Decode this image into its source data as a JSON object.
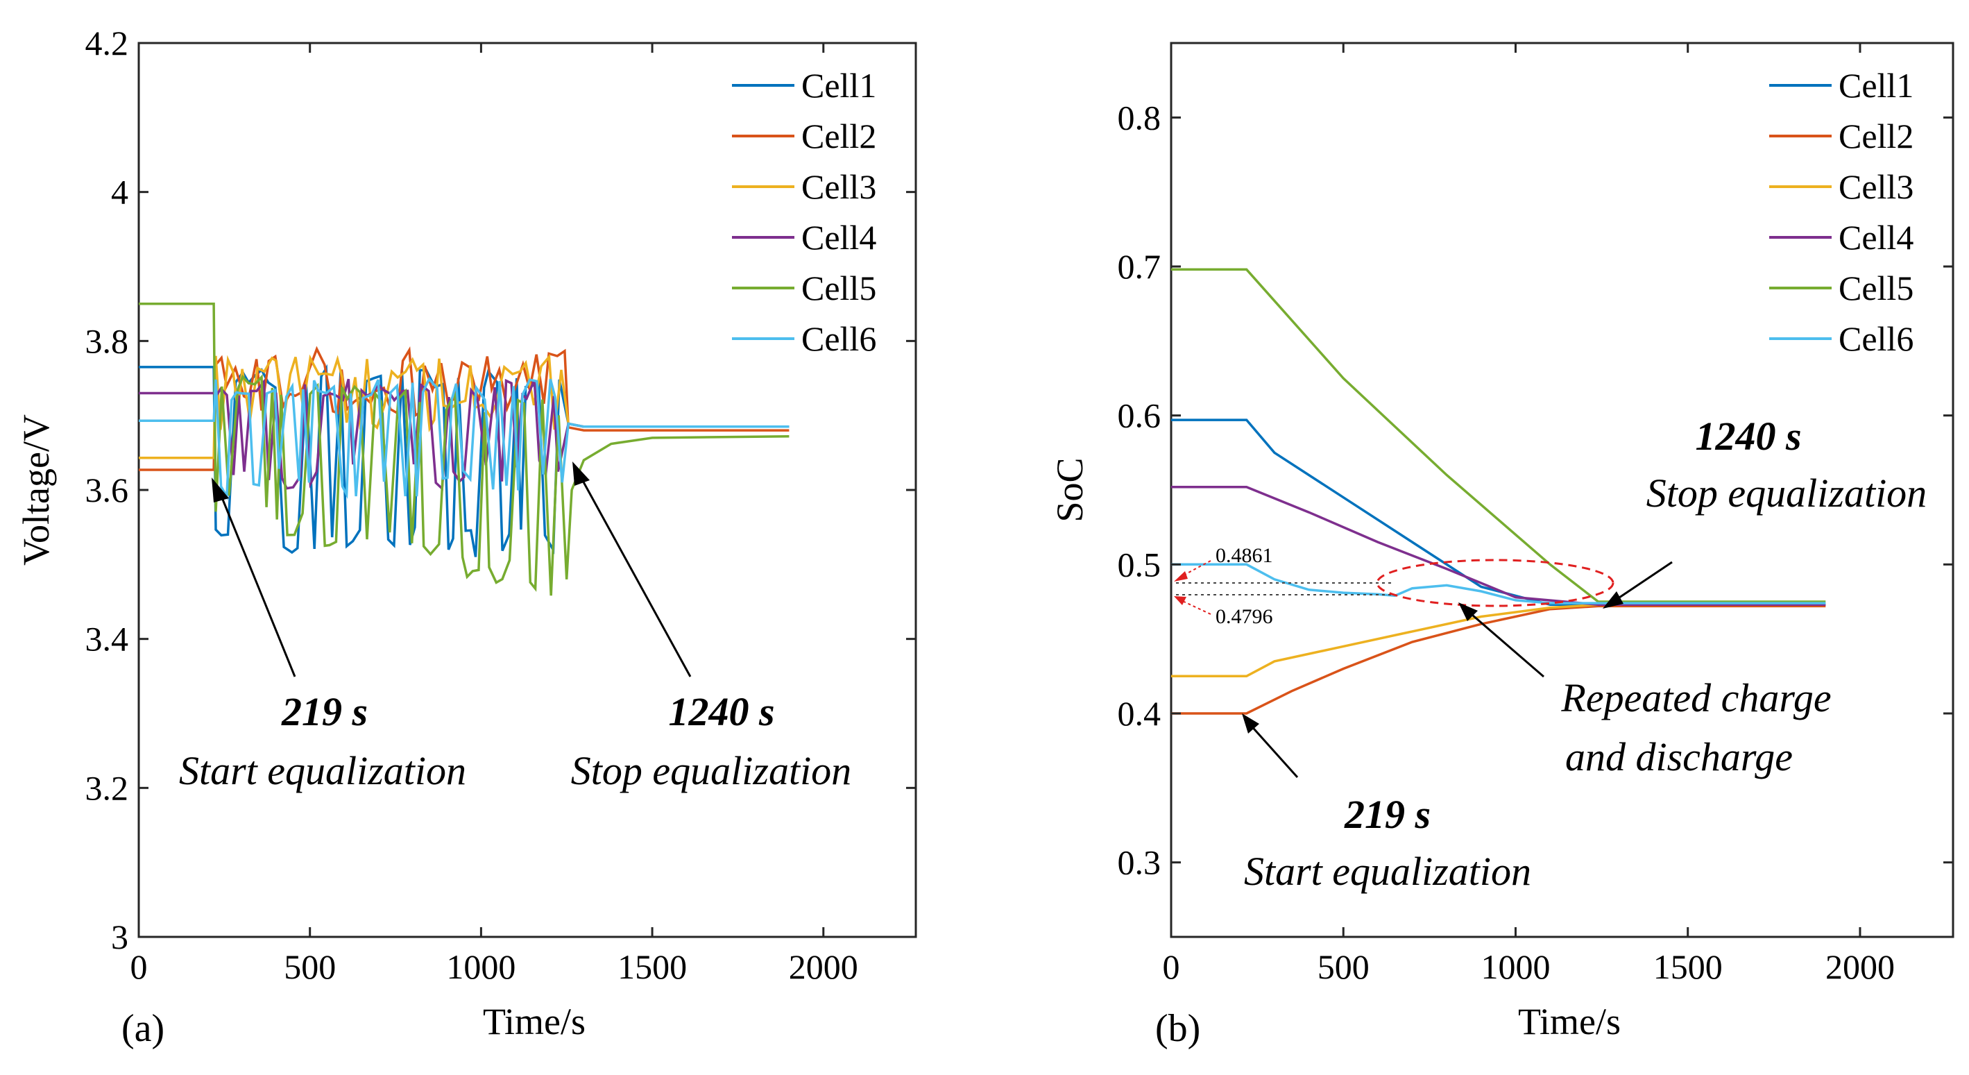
{
  "chart_data": [
    {
      "type": "line",
      "panel_label": "(a)",
      "xlabel": "Time/s",
      "ylabel": "Voltage/V",
      "xlim": [
        0,
        2270
      ],
      "ylim": [
        3,
        4.2
      ],
      "xticks": [
        "0",
        "500",
        "1000",
        "1500",
        "2000"
      ],
      "yticks": [
        "3",
        "3.2",
        "3.4",
        "3.6",
        "3.8",
        "4",
        "4.2"
      ],
      "legend_position": "top-right",
      "series": [
        {
          "name": "Cell1",
          "color": "#0072BD",
          "start_value": 3.765,
          "final_value": 3.685,
          "osc_low": 3.51,
          "osc_high": 3.765
        },
        {
          "name": "Cell2",
          "color": "#D95319",
          "start_value": 3.627,
          "final_value": 3.68,
          "osc_low": 3.7,
          "osc_high": 3.79
        },
        {
          "name": "Cell3",
          "color": "#EDB120",
          "start_value": 3.643,
          "final_value": 3.685,
          "osc_low": 3.68,
          "osc_high": 3.78
        },
        {
          "name": "Cell4",
          "color": "#7E2F8E",
          "start_value": 3.73,
          "final_value": 3.685,
          "osc_low": 3.6,
          "osc_high": 3.75
        },
        {
          "name": "Cell5",
          "color": "#77AC30",
          "start_value": 3.85,
          "final_value": 3.672,
          "osc_low": 3.44,
          "osc_high": 3.8
        },
        {
          "name": "Cell6",
          "color": "#4DBEEE",
          "start_value": 3.693,
          "final_value": 3.685,
          "osc_low": 3.59,
          "osc_high": 3.75
        }
      ],
      "annotations": [
        {
          "bold": "219 s",
          "italic": "Start equalization",
          "x": 219
        },
        {
          "bold": "1240 s",
          "italic": "Stop equalization",
          "x": 1240
        }
      ]
    },
    {
      "type": "line",
      "panel_label": "(b)",
      "xlabel": "Time/s",
      "ylabel": "SoC",
      "xlim": [
        0,
        2270
      ],
      "ylim": [
        0.25,
        0.85
      ],
      "xticks": [
        "0",
        "500",
        "1000",
        "1500",
        "2000"
      ],
      "yticks": [
        "0.3",
        "0.4",
        "0.5",
        "0.6",
        "0.7",
        "0.8"
      ],
      "legend_position": "top-right",
      "series": [
        {
          "name": "Cell1",
          "color": "#0072BD",
          "x": [
            0,
            219,
            300,
            500,
            700,
            900,
            1100,
            1240,
            1900
          ],
          "y": [
            0.597,
            0.597,
            0.575,
            0.545,
            0.515,
            0.485,
            0.473,
            0.473,
            0.473
          ]
        },
        {
          "name": "Cell2",
          "color": "#D95319",
          "x": [
            0,
            219,
            350,
            500,
            700,
            900,
            1100,
            1240,
            1900
          ],
          "y": [
            0.4,
            0.4,
            0.415,
            0.43,
            0.448,
            0.46,
            0.47,
            0.472,
            0.472
          ]
        },
        {
          "name": "Cell3",
          "color": "#EDB120",
          "x": [
            0,
            219,
            300,
            500,
            700,
            900,
            1100,
            1240,
            1900
          ],
          "y": [
            0.425,
            0.425,
            0.435,
            0.445,
            0.455,
            0.465,
            0.471,
            0.473,
            0.473
          ]
        },
        {
          "name": "Cell4",
          "color": "#7E2F8E",
          "x": [
            0,
            219,
            400,
            600,
            800,
            1000,
            1240,
            1900
          ],
          "y": [
            0.552,
            0.552,
            0.535,
            0.515,
            0.497,
            0.478,
            0.473,
            0.473
          ]
        },
        {
          "name": "Cell5",
          "color": "#77AC30",
          "x": [
            0,
            219,
            500,
            800,
            1100,
            1240,
            1900
          ],
          "y": [
            0.698,
            0.698,
            0.625,
            0.56,
            0.5,
            0.475,
            0.475
          ]
        },
        {
          "name": "Cell6",
          "color": "#4DBEEE",
          "x": [
            0,
            219,
            300,
            400,
            500,
            600,
            650,
            700,
            800,
            900,
            1000,
            1100,
            1240,
            1900
          ],
          "y": [
            0.5,
            0.5,
            0.49,
            0.483,
            0.481,
            0.48,
            0.479,
            0.484,
            0.486,
            0.482,
            0.476,
            0.474,
            0.474,
            0.474
          ]
        }
      ],
      "annotations": [
        {
          "bold": "1240 s",
          "italic": "Stop equalization",
          "x": 1240
        },
        {
          "bold": "219 s",
          "italic": "Start equalization",
          "x": 219
        },
        {
          "italic_line1": "Repeated charge",
          "italic_line2": "and discharge"
        }
      ],
      "values": {
        "upper": "0.4861",
        "lower": "0.4796",
        "upper_value": 0.4861,
        "lower_value": 0.4796
      }
    }
  ]
}
